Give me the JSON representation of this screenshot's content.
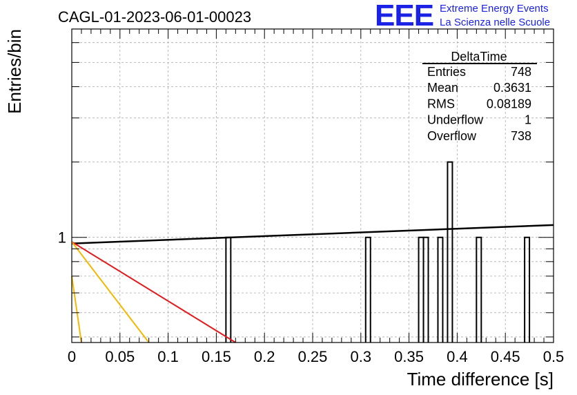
{
  "header": {
    "run_title": "CAGL-01-2023-06-01-00023",
    "logo_mark": "EEE",
    "logo_line1": "Extreme Energy Events",
    "logo_line2": "La Scienza nelle Scuole"
  },
  "colors": {
    "logo": "#1a22e6",
    "histogram": "#000000",
    "fit_black": "#000000",
    "fit_red": "#e31a1c",
    "fit_yellow": "#f5b800",
    "grid": "#aaaaaa"
  },
  "stats": {
    "title": "DeltaTime",
    "rows": [
      {
        "label": "Entries",
        "value": "748"
      },
      {
        "label": "Mean",
        "value": "0.3631"
      },
      {
        "label": "RMS",
        "value": "0.08189"
      },
      {
        "label": "Underflow",
        "value": "1"
      },
      {
        "label": "Overflow",
        "value": "738"
      }
    ]
  },
  "chart_data": {
    "type": "bar",
    "title": "CAGL-01-2023-06-01-00023",
    "xlabel": "Time difference [s]",
    "ylabel": "Entries/bin",
    "xlim": [
      0,
      0.5
    ],
    "ylim": [
      0.38,
      6.8
    ],
    "y_scale": "log",
    "grid": true,
    "x_ticks": [
      "0",
      "0.05",
      "0.1",
      "0.15",
      "0.2",
      "0.25",
      "0.3",
      "0.35",
      "0.4",
      "0.45",
      "0.5"
    ],
    "y_tick_labels": [
      {
        "value": 1,
        "label": "1"
      }
    ],
    "bin_width": 0.005,
    "bins": [
      {
        "x": 0.16,
        "count": 1
      },
      {
        "x": 0.305,
        "count": 1
      },
      {
        "x": 0.36,
        "count": 1
      },
      {
        "x": 0.365,
        "count": 1
      },
      {
        "x": 0.38,
        "count": 1
      },
      {
        "x": 0.39,
        "count": 2
      },
      {
        "x": 0.42,
        "count": 1
      },
      {
        "x": 0.47,
        "count": 1
      }
    ],
    "fit_lines": [
      {
        "color": "black",
        "points": [
          [
            0,
            0.945
          ],
          [
            0.5,
            1.12
          ]
        ]
      },
      {
        "color": "red",
        "points": [
          [
            0,
            0.96
          ],
          [
            0.17,
            0.38
          ]
        ]
      },
      {
        "color": "yellow",
        "points": [
          [
            0,
            0.96
          ],
          [
            0.08,
            0.38
          ]
        ]
      },
      {
        "color": "yellow",
        "points": [
          [
            0,
            0.7
          ],
          [
            0.01,
            0.38
          ]
        ]
      }
    ]
  }
}
